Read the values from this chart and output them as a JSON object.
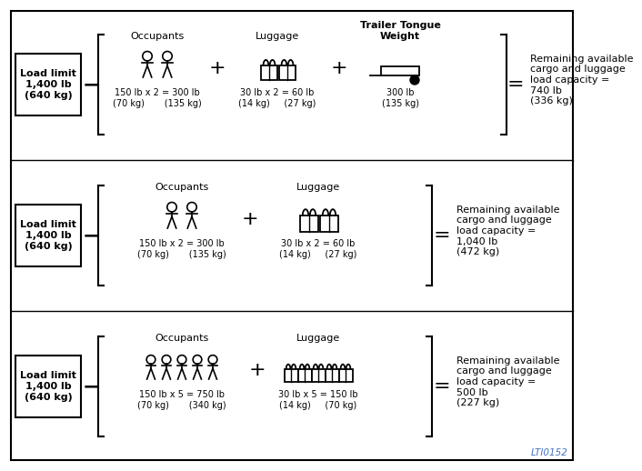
{
  "bg_color": "#ffffff",
  "border_color": "#000000",
  "text_color": "#000000",
  "watermark": "LTI0152",
  "watermark_color": "#4472c4",
  "rows": [
    {
      "load_limit_text": "Load limit\n1,400 lb\n(640 kg)",
      "has_trailer": true,
      "occupants_label": "Occupants",
      "occupants_count": 2,
      "occupants_weight_text": "150 lb x 2 = 300 lb\n(70 kg)       (135 kg)",
      "luggage_label": "Luggage",
      "luggage_count": 2,
      "luggage_weight_text": "30 lb x 2 = 60 lb\n(14 kg)     (27 kg)",
      "trailer_label": "Trailer Tongue\nWeight",
      "trailer_weight_text": "300 lb\n(135 kg)",
      "result_text": "Remaining available\ncargo and luggage\nload capacity =\n740 lb\n(336 kg)"
    },
    {
      "load_limit_text": "Load limit\n1,400 lb\n(640 kg)",
      "has_trailer": false,
      "occupants_label": "Occupants",
      "occupants_count": 2,
      "occupants_weight_text": "150 lb x 2 = 300 lb\n(70 kg)       (135 kg)",
      "luggage_label": "Luggage",
      "luggage_count": 2,
      "luggage_weight_text": "30 lb x 2 = 60 lb\n(14 kg)     (27 kg)",
      "trailer_label": "",
      "trailer_weight_text": "",
      "result_text": "Remaining available\ncargo and luggage\nload capacity =\n1,040 lb\n(472 kg)"
    },
    {
      "load_limit_text": "Load limit\n1,400 lb\n(640 kg)",
      "has_trailer": false,
      "occupants_label": "Occupants",
      "occupants_count": 5,
      "occupants_weight_text": "150 lb x 5 = 750 lb\n(70 kg)       (340 kg)",
      "luggage_label": "Luggage",
      "luggage_count": 5,
      "luggage_weight_text": "30 lb x 5 = 150 lb\n(14 kg)     (70 kg)",
      "trailer_label": "",
      "trailer_weight_text": "",
      "result_text": "Remaining available\ncargo and luggage\nload capacity =\n500 lb\n(227 kg)"
    }
  ]
}
